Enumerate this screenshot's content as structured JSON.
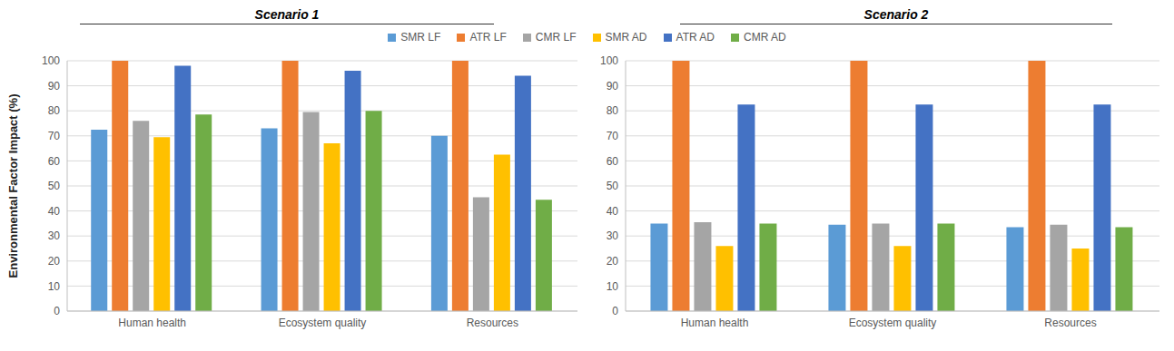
{
  "chart_data": [
    {
      "type": "bar",
      "title": "Scenario 1",
      "y_label": "Environmental Factor Impact (%)",
      "categories": [
        "Human health",
        "Ecosystem quality",
        "Resources"
      ],
      "ylim": [
        0,
        100
      ],
      "yticks": [
        0,
        10,
        20,
        30,
        40,
        50,
        60,
        70,
        80,
        90,
        100
      ],
      "grid": true,
      "legend": "top",
      "series": [
        {
          "name": "SMR LF",
          "color": "#5b9bd5",
          "values": [
            72.5,
            73,
            70
          ]
        },
        {
          "name": "ATR LF",
          "color": "#ed7d31",
          "values": [
            100,
            100,
            100
          ]
        },
        {
          "name": "CMR LF",
          "color": "#a5a5a5",
          "values": [
            76,
            79.5,
            45.5
          ]
        },
        {
          "name": "SMR AD",
          "color": "#ffc000",
          "values": [
            69.5,
            67,
            62.5
          ]
        },
        {
          "name": "ATR AD",
          "color": "#4472c4",
          "values": [
            98,
            96,
            94
          ]
        },
        {
          "name": "CMR AD",
          "color": "#70ad47",
          "values": [
            78.5,
            80,
            44.5
          ]
        }
      ]
    },
    {
      "type": "bar",
      "title": "Scenario 2",
      "categories": [
        "Human health",
        "Ecosystem quality",
        "Resources"
      ],
      "ylim": [
        0,
        100
      ],
      "yticks": [
        0,
        10,
        20,
        30,
        40,
        50,
        60,
        70,
        80,
        90,
        100
      ],
      "grid": true,
      "series": [
        {
          "name": "SMR LF",
          "color": "#5b9bd5",
          "values": [
            35,
            34.5,
            33.5
          ]
        },
        {
          "name": "ATR LF",
          "color": "#ed7d31",
          "values": [
            100,
            100,
            100
          ]
        },
        {
          "name": "CMR LF",
          "color": "#a5a5a5",
          "values": [
            35.5,
            35,
            34.5
          ]
        },
        {
          "name": "SMR AD",
          "color": "#ffc000",
          "values": [
            26,
            26,
            25
          ]
        },
        {
          "name": "ATR AD",
          "color": "#4472c4",
          "values": [
            82.5,
            82.5,
            82.5
          ]
        },
        {
          "name": "CMR AD",
          "color": "#70ad47",
          "values": [
            35,
            35,
            33.5
          ]
        }
      ]
    }
  ]
}
